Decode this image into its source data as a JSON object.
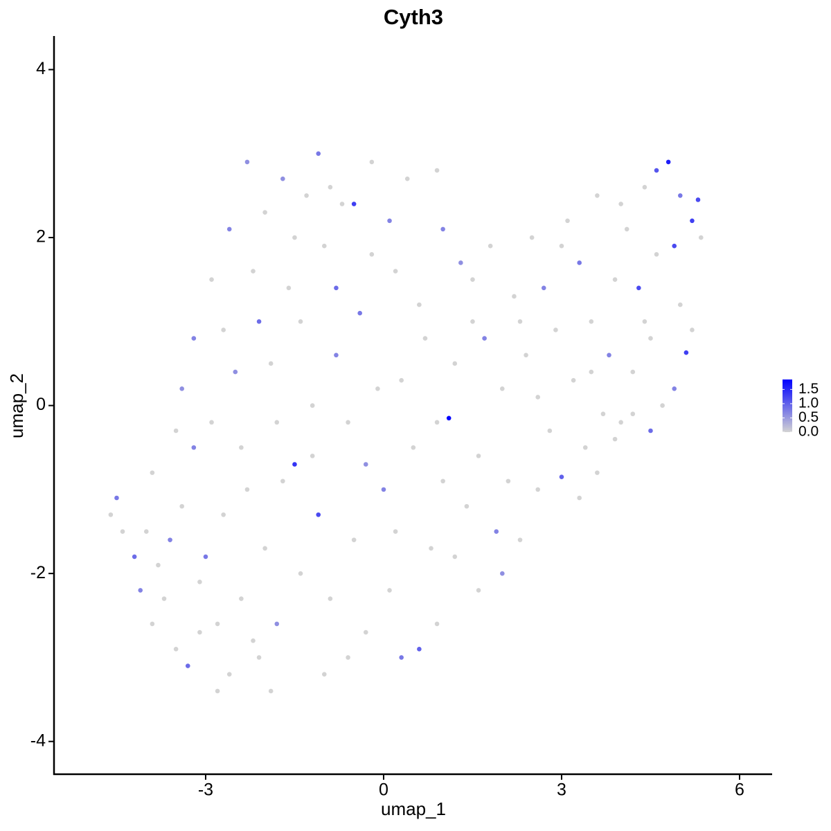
{
  "chart_data": {
    "type": "scatter",
    "title": "Cyth3",
    "x_label": "umap_1",
    "y_label": "umap_2",
    "xlim": [
      -5.556,
      6.549
    ],
    "ylim": [
      -4.39,
      4.4
    ],
    "xticks": [
      -3,
      0,
      3,
      6
    ],
    "yticks": [
      -4,
      -2,
      0,
      2,
      4
    ],
    "low_color": "#d3d3d3",
    "high_color": "#0000ff",
    "clim": [
      0,
      1.85
    ],
    "cticks": [
      {
        "value": 0,
        "label": "0.0"
      },
      0.5,
      {
        "value": 1,
        "label": "1.0"
      },
      1.5
    ],
    "x": [
      -4.6,
      -4.5,
      -4.4,
      -4.2,
      -4.1,
      -4.0,
      -3.9,
      -3.8,
      -3.7,
      -3.6,
      -3.5,
      -3.4,
      -3.3,
      -3.2,
      -3.1,
      -3.0,
      -2.9,
      -2.8,
      -2.7,
      -2.6,
      -2.5,
      -2.4,
      -2.3,
      -2.2,
      -2.1,
      -2.0,
      -1.9,
      -1.8,
      -1.7,
      -1.6,
      -1.5,
      -1.4,
      -1.3,
      -1.2,
      -1.1,
      -1.0,
      -0.9,
      -0.8,
      -0.7,
      -0.6,
      -0.5,
      -0.4,
      -0.3,
      -0.2,
      -0.1,
      0.0,
      0.1,
      0.2,
      0.3,
      0.4,
      0.5,
      0.6,
      0.7,
      0.8,
      -3.9,
      -3.5,
      -3.2,
      -2.9,
      -2.6,
      -2.3,
      -2.0,
      -1.7,
      -1.4,
      -1.1,
      -0.8,
      -0.5,
      -0.2,
      0.1,
      0.3,
      0.6,
      0.9,
      0.9,
      1.0,
      0.2,
      -0.6,
      -1.0,
      -1.9,
      -2.1,
      -2.8,
      -3.1,
      -2.4,
      -1.8,
      -1.2,
      -0.3,
      -2.7,
      -3.4,
      -2.2,
      -1.5,
      -0.9,
      1.1,
      1.2,
      1.3,
      1.4,
      1.5,
      1.6,
      1.7,
      1.8,
      1.9,
      2.0,
      2.1,
      2.2,
      2.3,
      2.4,
      2.5,
      2.6,
      2.7,
      2.8,
      2.9,
      3.0,
      3.1,
      3.2,
      3.3,
      3.4,
      3.5,
      3.6,
      3.7,
      3.8,
      3.9,
      4.0,
      4.1,
      4.2,
      4.3,
      4.4,
      4.5,
      4.6,
      4.7,
      4.8,
      4.9,
      5.0,
      5.1,
      5.2,
      5.3,
      5.35,
      5.2,
      4.9,
      4.5,
      4.2,
      3.9,
      3.6,
      3.3,
      2.0,
      1.6,
      1.2,
      0.9,
      4.0,
      4.6,
      5.0,
      4.4,
      3.0,
      2.3,
      1.5,
      1.0,
      3.5,
      2.6
    ],
    "y": [
      -1.3,
      -1.1,
      -1.5,
      -1.8,
      -2.2,
      -1.5,
      -2.6,
      -1.9,
      -2.3,
      -1.6,
      -2.9,
      -1.2,
      -3.1,
      -0.5,
      -2.1,
      -1.8,
      -0.2,
      -2.6,
      -1.3,
      -3.2,
      0.4,
      -2.3,
      -1.0,
      -2.8,
      1.0,
      -1.7,
      0.5,
      -2.6,
      -0.9,
      1.4,
      -0.7,
      -2.0,
      2.5,
      0.0,
      -1.3,
      1.9,
      -2.3,
      0.6,
      2.4,
      -0.2,
      -1.6,
      1.1,
      -2.7,
      2.9,
      0.2,
      -1.0,
      -2.2,
      1.6,
      -3.0,
      2.7,
      -0.5,
      -2.9,
      0.8,
      -1.7,
      -0.8,
      -0.3,
      0.8,
      1.5,
      2.1,
      2.9,
      2.3,
      2.7,
      1.0,
      3.0,
      1.4,
      2.4,
      1.8,
      2.2,
      0.3,
      1.2,
      2.8,
      -0.2,
      -0.9,
      -1.5,
      -3.0,
      -3.2,
      -3.4,
      -3.0,
      -3.4,
      -2.7,
      -0.5,
      -0.2,
      -0.6,
      -0.7,
      0.9,
      0.2,
      1.6,
      2.0,
      2.6,
      -0.15,
      0.5,
      1.7,
      -1.2,
      1.0,
      -0.6,
      0.8,
      1.9,
      -1.5,
      0.2,
      -0.9,
      1.3,
      -1.6,
      0.6,
      2.0,
      -1.0,
      1.4,
      -0.3,
      0.9,
      -0.85,
      2.2,
      0.3,
      1.7,
      -0.5,
      1.0,
      2.5,
      -0.1,
      0.6,
      1.5,
      -0.2,
      2.1,
      0.4,
      1.4,
      2.6,
      0.8,
      2.8,
      0.0,
      2.9,
      1.9,
      1.2,
      0.63,
      2.2,
      2.45,
      2.0,
      0.9,
      0.2,
      -0.3,
      -0.1,
      -0.4,
      -0.8,
      -1.1,
      -2.0,
      -2.2,
      -1.8,
      -2.6,
      2.4,
      1.8,
      2.5,
      1.0,
      1.9,
      1.0,
      1.5,
      2.1,
      0.4,
      0.1
    ],
    "values": [
      0,
      0.8,
      0,
      0.9,
      0.7,
      0,
      0,
      0,
      0,
      0.7,
      0,
      0,
      0.9,
      0.7,
      0,
      0.8,
      0,
      0,
      0,
      0,
      0.6,
      0,
      0,
      0,
      0.9,
      0,
      0,
      0.6,
      0,
      0,
      1.4,
      0,
      0,
      0,
      1.2,
      0,
      0,
      0.7,
      0,
      0,
      0,
      0.8,
      0,
      0,
      0,
      0.7,
      0,
      0,
      0.8,
      0,
      0,
      1.0,
      0,
      0,
      0,
      0,
      0.7,
      0,
      0.7,
      0.6,
      0,
      0.6,
      0,
      0.8,
      0.9,
      1.3,
      0,
      0.7,
      0,
      0,
      0,
      0,
      0,
      0,
      0,
      0,
      0,
      0,
      0,
      0,
      0,
      0,
      0,
      0.6,
      0,
      0.6,
      0,
      0,
      0,
      1.85,
      0,
      0.6,
      0,
      0,
      0,
      0.7,
      0,
      0.7,
      0,
      0,
      0,
      0,
      0,
      0,
      0,
      0.7,
      0,
      0,
      1.0,
      0,
      0,
      0.8,
      0,
      0,
      0,
      0,
      0.7,
      0,
      0,
      0,
      0,
      1.2,
      0,
      0,
      1.1,
      0,
      1.6,
      1.2,
      0,
      1.3,
      1.3,
      1.2,
      0,
      0,
      0.7,
      0.9,
      0,
      0,
      0,
      0,
      0.6,
      0,
      0,
      0,
      0,
      0,
      0.8,
      0,
      0,
      0,
      0,
      0.7,
      0,
      0
    ]
  }
}
